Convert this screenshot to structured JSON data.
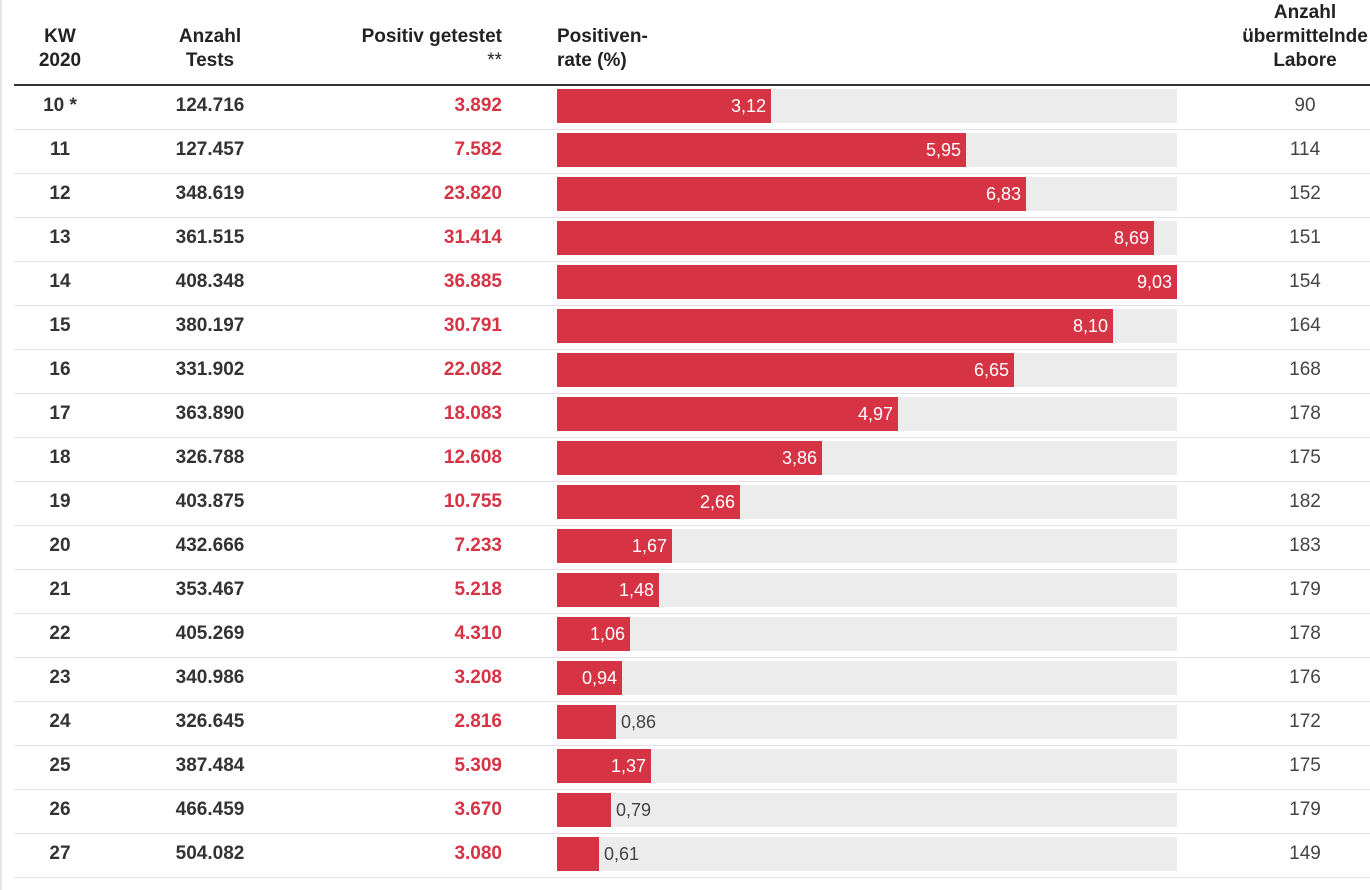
{
  "header": {
    "kw": [
      "KW",
      "2020"
    ],
    "tests": [
      "Anzahl",
      "Tests"
    ],
    "positive": [
      "Positiv getestet",
      "**"
    ],
    "rate": [
      "Positiven-",
      "rate (%)"
    ],
    "labs": [
      "Anzahl",
      "übermittelnde",
      "Labore"
    ]
  },
  "colors": {
    "bar": "#d63344",
    "track": "#ececec",
    "positive_text": "#d63344"
  },
  "chart_data": {
    "type": "table",
    "axis_max": 9.03,
    "columns": [
      "KW 2020",
      "Anzahl Tests",
      "Positiv getestet **",
      "Positivenrate (%)",
      "Anzahl übermittelnde Labore"
    ],
    "rows": [
      {
        "kw": "10 *",
        "tests": "124.716",
        "positive": "3.892",
        "rate": 3.12,
        "rate_label": "3,12",
        "labs": "90"
      },
      {
        "kw": "11",
        "tests": "127.457",
        "positive": "7.582",
        "rate": 5.95,
        "rate_label": "5,95",
        "labs": "114"
      },
      {
        "kw": "12",
        "tests": "348.619",
        "positive": "23.820",
        "rate": 6.83,
        "rate_label": "6,83",
        "labs": "152"
      },
      {
        "kw": "13",
        "tests": "361.515",
        "positive": "31.414",
        "rate": 8.69,
        "rate_label": "8,69",
        "labs": "151"
      },
      {
        "kw": "14",
        "tests": "408.348",
        "positive": "36.885",
        "rate": 9.03,
        "rate_label": "9,03",
        "labs": "154"
      },
      {
        "kw": "15",
        "tests": "380.197",
        "positive": "30.791",
        "rate": 8.1,
        "rate_label": "8,10",
        "labs": "164"
      },
      {
        "kw": "16",
        "tests": "331.902",
        "positive": "22.082",
        "rate": 6.65,
        "rate_label": "6,65",
        "labs": "168"
      },
      {
        "kw": "17",
        "tests": "363.890",
        "positive": "18.083",
        "rate": 4.97,
        "rate_label": "4,97",
        "labs": "178"
      },
      {
        "kw": "18",
        "tests": "326.788",
        "positive": "12.608",
        "rate": 3.86,
        "rate_label": "3,86",
        "labs": "175"
      },
      {
        "kw": "19",
        "tests": "403.875",
        "positive": "10.755",
        "rate": 2.66,
        "rate_label": "2,66",
        "labs": "182"
      },
      {
        "kw": "20",
        "tests": "432.666",
        "positive": "7.233",
        "rate": 1.67,
        "rate_label": "1,67",
        "labs": "183"
      },
      {
        "kw": "21",
        "tests": "353.467",
        "positive": "5.218",
        "rate": 1.48,
        "rate_label": "1,48",
        "labs": "179"
      },
      {
        "kw": "22",
        "tests": "405.269",
        "positive": "4.310",
        "rate": 1.06,
        "rate_label": "1,06",
        "labs": "178"
      },
      {
        "kw": "23",
        "tests": "340.986",
        "positive": "3.208",
        "rate": 0.94,
        "rate_label": "0,94",
        "labs": "176"
      },
      {
        "kw": "24",
        "tests": "326.645",
        "positive": "2.816",
        "rate": 0.86,
        "rate_label": "0,86",
        "labs": "172"
      },
      {
        "kw": "25",
        "tests": "387.484",
        "positive": "5.309",
        "rate": 1.37,
        "rate_label": "1,37",
        "labs": "175"
      },
      {
        "kw": "26",
        "tests": "466.459",
        "positive": "3.670",
        "rate": 0.79,
        "rate_label": "0,79",
        "labs": "179"
      },
      {
        "kw": "27",
        "tests": "504.082",
        "positive": "3.080",
        "rate": 0.61,
        "rate_label": "0,61",
        "labs": "149"
      }
    ]
  }
}
